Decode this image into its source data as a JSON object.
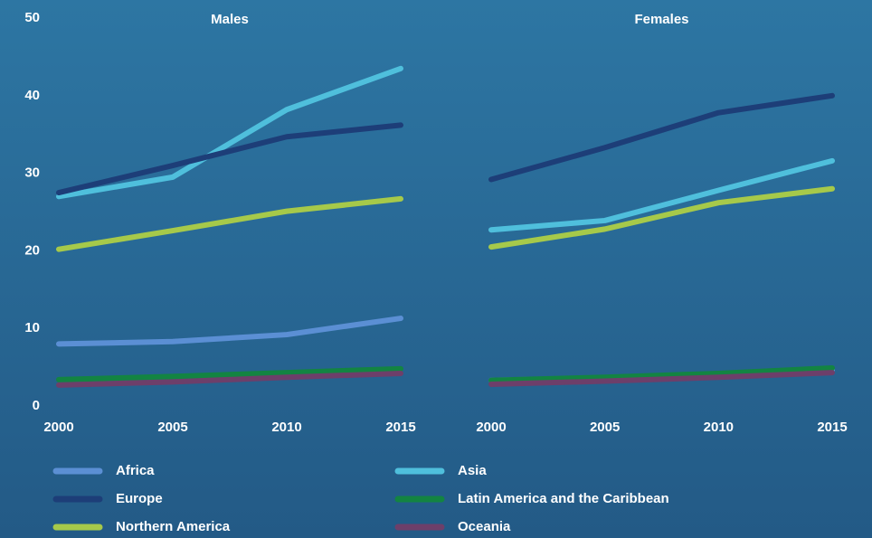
{
  "chart_data": [
    {
      "type": "line",
      "title": "Males",
      "x": [
        2000,
        2005,
        2010,
        2015
      ],
      "xlim": [
        2000,
        2015
      ],
      "xticks": [
        2000,
        2005,
        2010,
        2015
      ],
      "ylim": [
        0,
        50
      ],
      "yticks": [
        0,
        10,
        20,
        30,
        40,
        50
      ],
      "grid": false,
      "series": [
        {
          "name": "Africa",
          "color": "#5b8fd4",
          "values": [
            8.0,
            8.3,
            9.2,
            11.3
          ]
        },
        {
          "name": "Asia",
          "color": "#4fbfdc",
          "values": [
            27.0,
            29.5,
            38.2,
            43.5
          ]
        },
        {
          "name": "Europe",
          "color": "#1d3e78",
          "values": [
            27.5,
            31.0,
            34.7,
            36.2
          ]
        },
        {
          "name": "Latin America and the Caribbean",
          "color": "#138442",
          "values": [
            3.4,
            3.8,
            4.3,
            4.8
          ]
        },
        {
          "name": "Northern America",
          "color": "#a6c94a",
          "values": [
            20.2,
            22.6,
            25.1,
            26.7
          ]
        },
        {
          "name": "Oceania",
          "color": "#6d3f6a",
          "values": [
            2.7,
            3.1,
            3.7,
            4.2
          ]
        }
      ]
    },
    {
      "type": "line",
      "title": "Females",
      "x": [
        2000,
        2005,
        2010,
        2015
      ],
      "xlim": [
        2000,
        2015
      ],
      "xticks": [
        2000,
        2005,
        2010,
        2015
      ],
      "ylim": [
        0,
        50
      ],
      "series": [
        {
          "color": "#5b8fd4",
          "values": [
            3.3,
            3.6,
            4.0,
            4.6
          ]
        },
        {
          "color": "#4fbfdc",
          "values": [
            22.7,
            23.9,
            27.8,
            31.6
          ]
        },
        {
          "color": "#1d3e78",
          "values": [
            29.2,
            33.3,
            37.8,
            40.0
          ]
        },
        {
          "color": "#138442",
          "values": [
            3.3,
            3.7,
            4.2,
            4.9
          ]
        },
        {
          "color": "#a6c94a",
          "values": [
            20.5,
            22.8,
            26.2,
            28.0
          ]
        },
        {
          "color": "#6d3f6a",
          "values": [
            2.8,
            3.2,
            3.7,
            4.3
          ]
        }
      ]
    }
  ]
}
